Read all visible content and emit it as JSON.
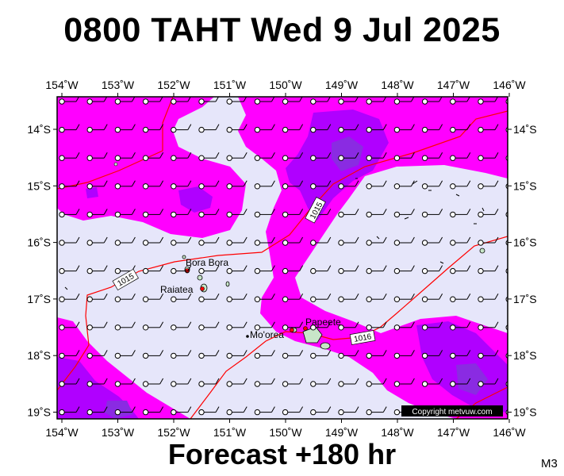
{
  "title": "0800 TAHT Wed 9 Jul 2025",
  "footer": "Forecast +180 hr",
  "model_code": "M3",
  "copyright": "Copyright metvuw.com",
  "lon_labels": [
    "154˚W",
    "153˚W",
    "152˚W",
    "151˚W",
    "150˚W",
    "149˚W",
    "148˚W",
    "147˚W",
    "146˚W"
  ],
  "lat_labels": [
    "14˚S",
    "15˚S",
    "16˚S",
    "17˚S",
    "18˚S",
    "19˚S"
  ],
  "places": [
    {
      "name": "Bora Bora",
      "lon": -151.75,
      "lat": -16.5
    },
    {
      "name": "Raiatea",
      "lon": -151.45,
      "lat": -16.82
    },
    {
      "name": "Mo'orea",
      "lon": -149.83,
      "lat": -17.53
    },
    {
      "name": "Papeete",
      "lon": -149.57,
      "lat": -17.53
    }
  ],
  "isobar_labels": [
    "1015",
    "1015",
    "1016"
  ],
  "colors": {
    "background": "#e6e6fa",
    "magenta": "#ff00ff",
    "purple": "#b000ff",
    "violet": "#8a2be2",
    "isobar": "#ff0000"
  }
}
